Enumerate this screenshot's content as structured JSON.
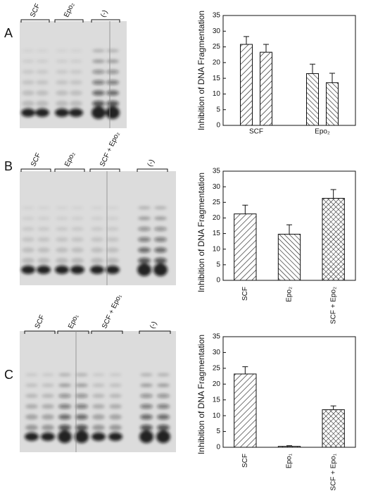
{
  "panels": [
    {
      "letter": "A",
      "gel_labels": [
        "SCF",
        "Epo₂",
        "(-)"
      ]
    },
    {
      "letter": "B",
      "gel_labels": [
        "SCF",
        "Epo₂",
        "SCF + Epo₂",
        "(-)"
      ]
    },
    {
      "letter": "C",
      "gel_labels": [
        "SCF",
        "Epo₁",
        "SCF + Epo₁",
        "(-)"
      ]
    }
  ],
  "chart_data": [
    {
      "type": "grouped-bar",
      "y_label": "Inhibition of DNA Fragmentation",
      "categories": [
        "SCF",
        "Epo₂"
      ],
      "series": [
        {
          "values": [
            25.8,
            16.5
          ],
          "errors": [
            2.5,
            3
          ]
        },
        {
          "values": [
            23.3,
            13.6
          ],
          "errors": [
            2.5,
            3
          ]
        }
      ],
      "patterns": [
        "hatch-right",
        "hatch-left"
      ],
      "xtick_rotation": 0,
      "ylim": [
        0,
        35
      ],
      "yticks": [
        0,
        5,
        10,
        15,
        20,
        25,
        30,
        35
      ]
    },
    {
      "type": "bar",
      "y_label": "Inhibition of DNA Fragmentation",
      "categories": [
        "SCF",
        "Epo₂",
        "SCF + Epo₂"
      ],
      "values": [
        21.3,
        14.8,
        26.3
      ],
      "errors": [
        2.8,
        3,
        2.8
      ],
      "patterns": [
        "hatch-right",
        "hatch-left",
        "cross"
      ],
      "xtick_rotation": 90,
      "ylim": [
        0,
        35
      ],
      "yticks": [
        0,
        5,
        10,
        15,
        20,
        25,
        30,
        35
      ]
    },
    {
      "type": "bar",
      "y_label": "Inhibition of DNA Fragmentation",
      "categories": [
        "SCF",
        "Epo₁",
        "SCF + Epo₁"
      ],
      "values": [
        23.2,
        0.3,
        11.9
      ],
      "errors": [
        2.3,
        0.2,
        1.2
      ],
      "patterns": [
        "hatch-right",
        "hatch-left",
        "cross"
      ],
      "xtick_rotation": 90,
      "ylim": [
        0,
        35
      ],
      "yticks": [
        0,
        5,
        10,
        15,
        20,
        25,
        30,
        35
      ]
    }
  ]
}
